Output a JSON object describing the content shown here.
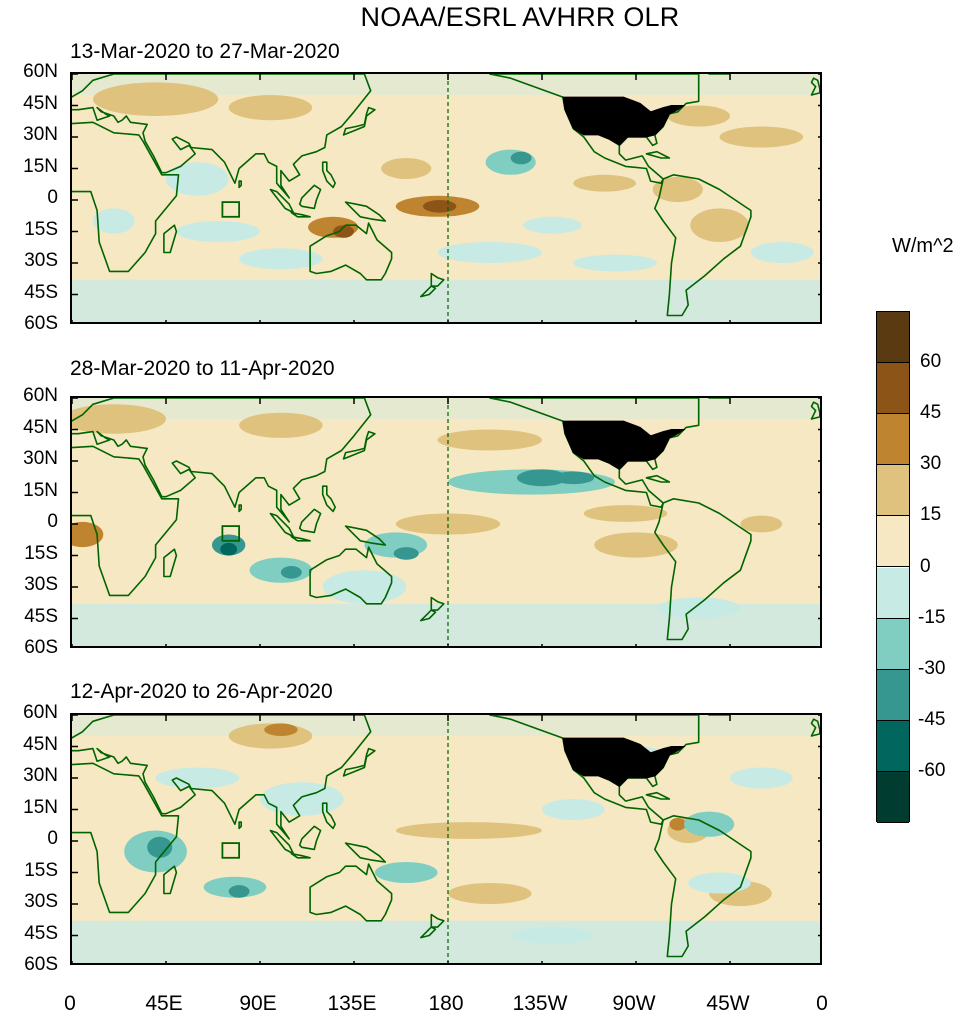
{
  "title": "NOAA/ESRL AVHRR OLR",
  "panels": [
    {
      "label": "13-Mar-2020 to 27-Mar-2020"
    },
    {
      "label": "28-Mar-2020 to 11-Apr-2020"
    },
    {
      "label": "12-Apr-2020 to 26-Apr-2020"
    }
  ],
  "lat_labels": [
    "60N",
    "45N",
    "30N",
    "15N",
    "0",
    "15S",
    "30S",
    "45S",
    "60S"
  ],
  "lon_labels": [
    "0",
    "45E",
    "90E",
    "135E",
    "180",
    "135W",
    "90W",
    "45W",
    "0"
  ],
  "colorbar": {
    "units": "W/m^2",
    "labels": [
      "60",
      "45",
      "30",
      "15",
      "0",
      "-15",
      "-30",
      "-45",
      "-60"
    ],
    "colors": [
      "#5a3a10",
      "#8c5416",
      "#bf842f",
      "#dfc27d",
      "#f6e8c3",
      "#c7eae5",
      "#80cdc1",
      "#35978f",
      "#01665e",
      "#003c30"
    ]
  },
  "palette": {
    "coast": "#006400",
    "usa_fill": "#000000"
  }
}
